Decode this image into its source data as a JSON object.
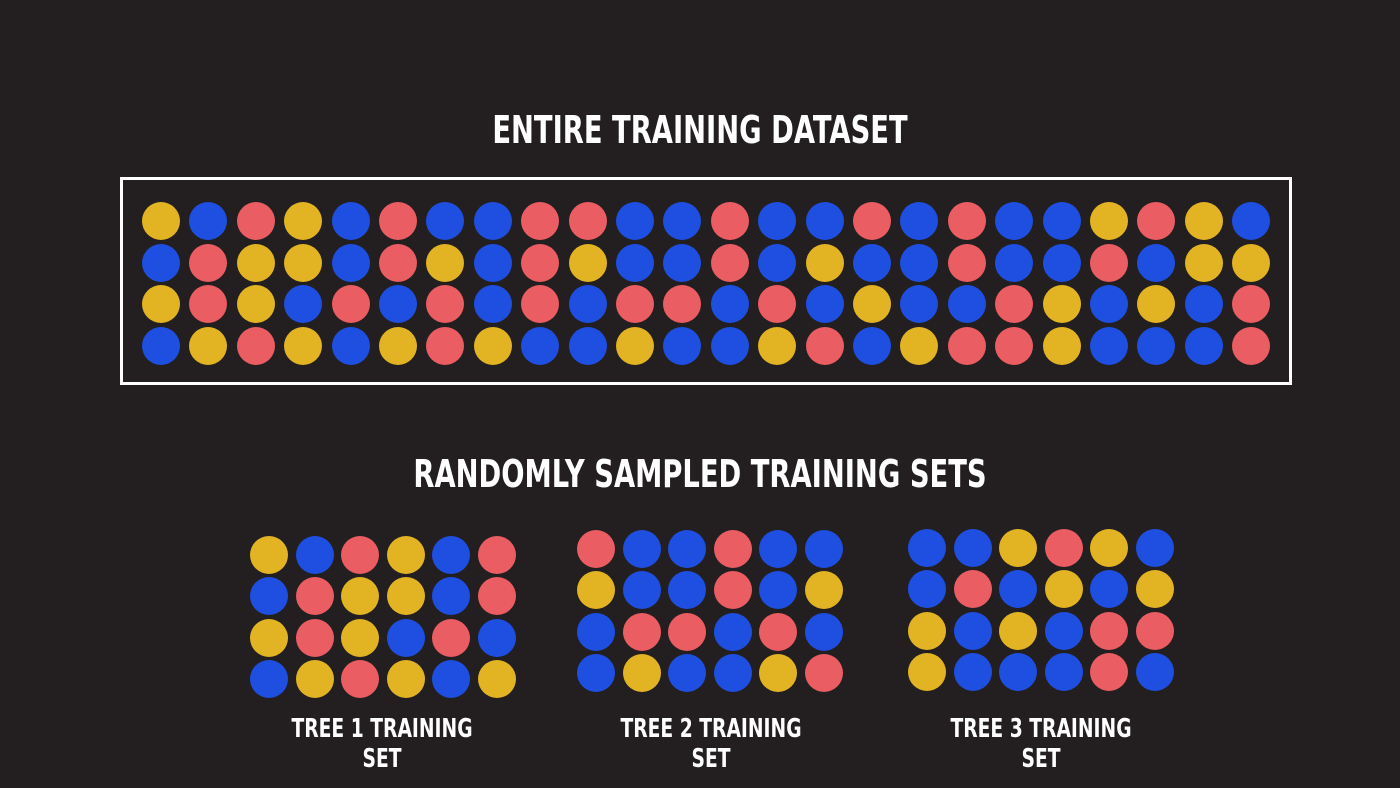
{
  "colors": {
    "y": "#e2b423",
    "b": "#1e4fe0",
    "r": "#ea5d63"
  },
  "title": "ENTIRE TRAINING DATASET",
  "subtitle": "RANDOMLY SAMPLED TRAINING SETS",
  "dataset": {
    "rows": [
      [
        "y",
        "b",
        "r",
        "y",
        "b",
        "r",
        "b",
        "b",
        "r",
        "r",
        "b",
        "b",
        "r",
        "b",
        "b",
        "r",
        "b",
        "r",
        "b",
        "b",
        "y",
        "r",
        "y",
        "b"
      ],
      [
        "b",
        "r",
        "y",
        "y",
        "b",
        "r",
        "y",
        "b",
        "r",
        "y",
        "b",
        "b",
        "r",
        "b",
        "y",
        "b",
        "b",
        "r",
        "b",
        "b",
        "r",
        "b",
        "y",
        "y"
      ],
      [
        "y",
        "r",
        "y",
        "b",
        "r",
        "b",
        "r",
        "b",
        "r",
        "b",
        "r",
        "r",
        "b",
        "r",
        "b",
        "y",
        "b",
        "b",
        "r",
        "y",
        "b",
        "y",
        "b",
        "r"
      ],
      [
        "b",
        "y",
        "r",
        "y",
        "b",
        "y",
        "r",
        "y",
        "b",
        "b",
        "y",
        "b",
        "b",
        "y",
        "r",
        "b",
        "y",
        "r",
        "r",
        "y",
        "b",
        "b",
        "b",
        "r"
      ]
    ]
  },
  "trees": [
    {
      "label": "TREE 1 TRAINING SET",
      "rows": [
        [
          "y",
          "b",
          "r",
          "y",
          "b",
          "r"
        ],
        [
          "b",
          "r",
          "y",
          "y",
          "b",
          "r"
        ],
        [
          "y",
          "r",
          "y",
          "b",
          "r",
          "b"
        ],
        [
          "b",
          "y",
          "r",
          "y",
          "b",
          "y"
        ]
      ]
    },
    {
      "label": "TREE 2 TRAINING SET",
      "rows": [
        [
          "r",
          "b",
          "b",
          "r",
          "b",
          "b"
        ],
        [
          "y",
          "b",
          "b",
          "r",
          "b",
          "y"
        ],
        [
          "b",
          "r",
          "r",
          "b",
          "r",
          "b"
        ],
        [
          "b",
          "y",
          "b",
          "b",
          "y",
          "r"
        ]
      ]
    },
    {
      "label": "TREE 3 TRAINING SET",
      "rows": [
        [
          "b",
          "b",
          "y",
          "r",
          "y",
          "b"
        ],
        [
          "b",
          "r",
          "b",
          "y",
          "b",
          "y"
        ],
        [
          "y",
          "b",
          "y",
          "b",
          "r",
          "r"
        ],
        [
          "y",
          "b",
          "b",
          "b",
          "r",
          "b"
        ]
      ]
    }
  ]
}
